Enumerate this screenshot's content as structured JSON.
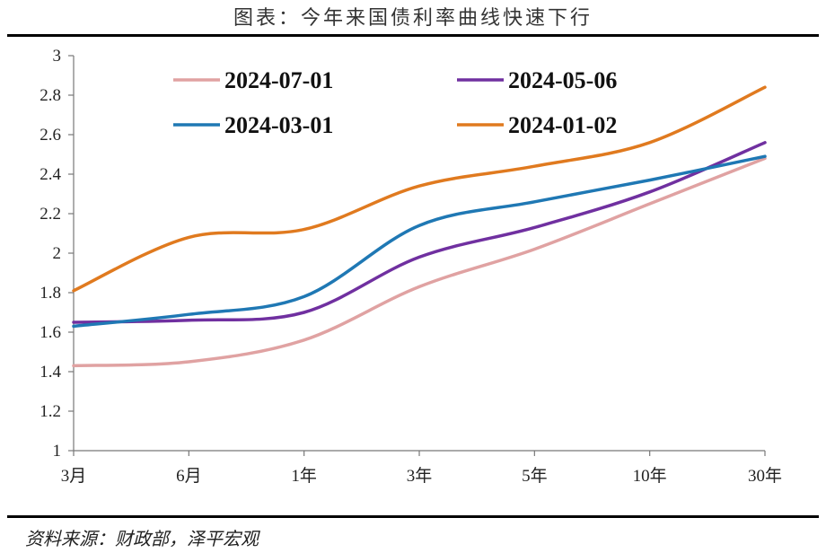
{
  "header": {
    "title": "图表：今年来国债利率曲线快速下行"
  },
  "footer": {
    "source": "资料来源：财政部，泽平宏观"
  },
  "chart_data": {
    "type": "line",
    "title": "图表：今年来国债利率曲线快速下行",
    "xlabel": "",
    "ylabel": "",
    "categories": [
      "3月",
      "6月",
      "1年",
      "3年",
      "5年",
      "10年",
      "30年"
    ],
    "ylim": [
      1,
      3
    ],
    "yticks": [
      "1",
      "1.2",
      "1.4",
      "1.6",
      "1.8",
      "2",
      "2.2",
      "2.4",
      "2.6",
      "2.8",
      "3"
    ],
    "grid": false,
    "legend_position": "top",
    "series": [
      {
        "name": "2024-07-01",
        "color": "#e0a2a2",
        "values": [
          1.43,
          1.45,
          1.56,
          1.83,
          2.02,
          2.25,
          2.48
        ]
      },
      {
        "name": "2024-05-06",
        "color": "#7030a0",
        "values": [
          1.65,
          1.66,
          1.7,
          1.98,
          2.13,
          2.31,
          2.56
        ]
      },
      {
        "name": "2024-03-01",
        "color": "#1f78b4",
        "values": [
          1.63,
          1.69,
          1.78,
          2.14,
          2.26,
          2.37,
          2.49
        ]
      },
      {
        "name": "2024-01-02",
        "color": "#e07a1f",
        "values": [
          1.81,
          2.08,
          2.12,
          2.34,
          2.44,
          2.56,
          2.84
        ]
      }
    ]
  }
}
